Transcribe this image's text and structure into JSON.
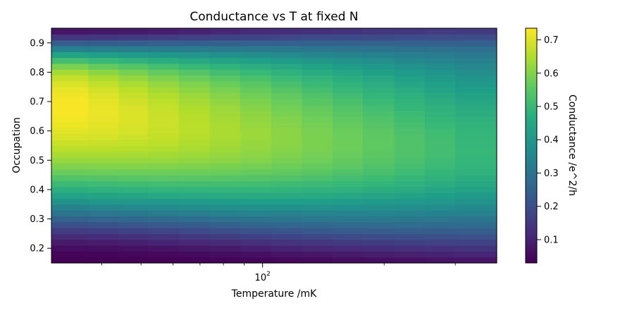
{
  "chart_data": {
    "type": "heatmap",
    "title": "Conductance vs T at fixed N",
    "xlabel": "Temperature /mK",
    "ylabel": "Occupation",
    "colorbar_label": "Conductance /e^2/h",
    "colormap": "viridis",
    "x_scale": "log",
    "x_range_mK": [
      30,
      380
    ],
    "x_major_tick": {
      "value": 100,
      "label": "10",
      "exponent": "2"
    },
    "x_minor_ticks": [
      40,
      50,
      60,
      70,
      80,
      90,
      200,
      300
    ],
    "ylim": [
      0.15,
      0.95
    ],
    "y_ticks": [
      0.2,
      0.3,
      0.4,
      0.5,
      0.6,
      0.7,
      0.8,
      0.9
    ],
    "y_tick_labels": [
      "0.2",
      "0.3",
      "0.4",
      "0.5",
      "0.6",
      "0.7",
      "0.8",
      "0.9"
    ],
    "clim": [
      0.03,
      0.735
    ],
    "colorbar_ticks": [
      0.1,
      0.2,
      0.3,
      0.4,
      0.5,
      0.6,
      0.7
    ],
    "colorbar_tick_labels": [
      "0.1",
      "0.2",
      "0.3",
      "0.4",
      "0.5",
      "0.6",
      "0.7"
    ],
    "temperature_columns_mK": [
      30,
      37,
      44,
      52,
      62,
      74,
      88,
      105,
      125,
      149,
      177,
      212,
      252,
      300,
      380
    ],
    "occupation_rows": [
      0.15,
      0.17,
      0.19,
      0.21,
      0.23,
      0.25,
      0.27,
      0.29,
      0.31,
      0.33,
      0.35,
      0.37,
      0.39,
      0.41,
      0.43,
      0.45,
      0.47,
      0.49,
      0.51,
      0.53,
      0.55,
      0.57,
      0.59,
      0.61,
      0.63,
      0.65,
      0.67,
      0.69,
      0.71,
      0.73,
      0.75,
      0.77,
      0.79,
      0.81,
      0.83,
      0.85,
      0.87,
      0.89,
      0.91,
      0.93,
      0.95
    ],
    "conductance_values": [
      [
        0.032,
        0.033,
        0.034,
        0.035,
        0.036,
        0.038,
        0.041,
        0.045,
        0.049,
        0.053,
        0.057,
        0.062,
        0.066,
        0.071
      ],
      [
        0.038,
        0.04,
        0.042,
        0.045,
        0.049,
        0.054,
        0.06,
        0.066,
        0.073,
        0.08,
        0.086,
        0.092,
        0.098,
        0.103
      ],
      [
        0.054,
        0.058,
        0.062,
        0.067,
        0.074,
        0.081,
        0.089,
        0.098,
        0.106,
        0.114,
        0.121,
        0.127,
        0.132,
        0.136
      ],
      [
        0.08,
        0.085,
        0.091,
        0.098,
        0.106,
        0.115,
        0.125,
        0.135,
        0.144,
        0.152,
        0.158,
        0.164,
        0.168,
        0.171
      ],
      [
        0.115,
        0.121,
        0.128,
        0.136,
        0.145,
        0.155,
        0.165,
        0.175,
        0.184,
        0.191,
        0.197,
        0.201,
        0.204,
        0.206
      ],
      [
        0.157,
        0.164,
        0.171,
        0.18,
        0.189,
        0.199,
        0.209,
        0.218,
        0.226,
        0.232,
        0.236,
        0.239,
        0.24,
        0.24
      ],
      [
        0.203,
        0.21,
        0.218,
        0.226,
        0.235,
        0.245,
        0.254,
        0.262,
        0.268,
        0.272,
        0.275,
        0.276,
        0.275,
        0.273
      ],
      [
        0.252,
        0.259,
        0.266,
        0.274,
        0.282,
        0.291,
        0.299,
        0.305,
        0.31,
        0.312,
        0.313,
        0.312,
        0.309,
        0.305
      ],
      [
        0.3,
        0.307,
        0.314,
        0.321,
        0.329,
        0.336,
        0.342,
        0.347,
        0.349,
        0.35,
        0.348,
        0.345,
        0.341,
        0.336
      ],
      [
        0.347,
        0.354,
        0.36,
        0.366,
        0.373,
        0.379,
        0.383,
        0.386,
        0.387,
        0.385,
        0.382,
        0.377,
        0.371,
        0.364
      ],
      [
        0.392,
        0.398,
        0.404,
        0.409,
        0.414,
        0.419,
        0.422,
        0.423,
        0.422,
        0.419,
        0.414,
        0.407,
        0.399,
        0.39
      ],
      [
        0.434,
        0.439,
        0.444,
        0.449,
        0.453,
        0.456,
        0.457,
        0.457,
        0.455,
        0.45,
        0.443,
        0.435,
        0.425,
        0.414
      ],
      [
        0.473,
        0.478,
        0.482,
        0.486,
        0.489,
        0.49,
        0.49,
        0.488,
        0.484,
        0.477,
        0.469,
        0.459,
        0.448,
        0.435
      ],
      [
        0.509,
        0.513,
        0.517,
        0.519,
        0.52,
        0.521,
        0.519,
        0.515,
        0.509,
        0.502,
        0.492,
        0.481,
        0.468,
        0.454
      ],
      [
        0.541,
        0.545,
        0.548,
        0.549,
        0.549,
        0.547,
        0.544,
        0.539,
        0.531,
        0.522,
        0.511,
        0.498,
        0.484,
        0.469
      ],
      [
        0.571,
        0.574,
        0.576,
        0.576,
        0.574,
        0.571,
        0.566,
        0.559,
        0.55,
        0.539,
        0.527,
        0.513,
        0.498,
        0.482
      ],
      [
        0.598,
        0.6,
        0.601,
        0.6,
        0.597,
        0.592,
        0.585,
        0.576,
        0.565,
        0.553,
        0.539,
        0.524,
        0.508,
        0.491
      ],
      [
        0.622,
        0.624,
        0.623,
        0.621,
        0.616,
        0.609,
        0.6,
        0.589,
        0.577,
        0.563,
        0.548,
        0.532,
        0.515,
        0.497
      ],
      [
        0.644,
        0.644,
        0.642,
        0.638,
        0.631,
        0.622,
        0.611,
        0.598,
        0.585,
        0.57,
        0.554,
        0.537,
        0.519,
        0.501
      ],
      [
        0.663,
        0.662,
        0.659,
        0.652,
        0.643,
        0.632,
        0.619,
        0.605,
        0.59,
        0.574,
        0.557,
        0.539,
        0.521,
        0.502
      ],
      [
        0.68,
        0.677,
        0.672,
        0.663,
        0.652,
        0.639,
        0.624,
        0.609,
        0.592,
        0.575,
        0.557,
        0.539,
        0.52,
        0.501
      ],
      [
        0.694,
        0.69,
        0.682,
        0.671,
        0.658,
        0.643,
        0.627,
        0.61,
        0.592,
        0.574,
        0.555,
        0.536,
        0.517,
        0.498
      ],
      [
        0.706,
        0.7,
        0.69,
        0.677,
        0.661,
        0.644,
        0.627,
        0.609,
        0.59,
        0.571,
        0.551,
        0.532,
        0.513,
        0.494
      ],
      [
        0.716,
        0.707,
        0.695,
        0.679,
        0.662,
        0.643,
        0.624,
        0.605,
        0.585,
        0.565,
        0.545,
        0.526,
        0.506,
        0.487
      ],
      [
        0.723,
        0.712,
        0.697,
        0.679,
        0.66,
        0.64,
        0.619,
        0.599,
        0.578,
        0.558,
        0.538,
        0.518,
        0.498,
        0.479
      ],
      [
        0.727,
        0.714,
        0.697,
        0.677,
        0.656,
        0.634,
        0.613,
        0.591,
        0.57,
        0.549,
        0.529,
        0.509,
        0.489,
        0.47
      ],
      [
        0.729,
        0.713,
        0.694,
        0.672,
        0.649,
        0.627,
        0.604,
        0.582,
        0.561,
        0.54,
        0.519,
        0.498,
        0.478,
        0.459
      ],
      [
        0.727,
        0.709,
        0.687,
        0.664,
        0.64,
        0.617,
        0.594,
        0.572,
        0.55,
        0.529,
        0.508,
        0.487,
        0.467,
        0.448
      ],
      [
        0.722,
        0.701,
        0.677,
        0.653,
        0.629,
        0.605,
        0.582,
        0.56,
        0.538,
        0.517,
        0.496,
        0.475,
        0.455,
        0.436
      ],
      [
        0.712,
        0.689,
        0.664,
        0.639,
        0.614,
        0.59,
        0.567,
        0.545,
        0.524,
        0.503,
        0.482,
        0.462,
        0.442,
        0.423
      ],
      [
        0.697,
        0.672,
        0.646,
        0.62,
        0.596,
        0.573,
        0.55,
        0.528,
        0.507,
        0.487,
        0.467,
        0.447,
        0.428,
        0.409
      ],
      [
        0.674,
        0.648,
        0.622,
        0.597,
        0.573,
        0.55,
        0.529,
        0.508,
        0.488,
        0.468,
        0.449,
        0.43,
        0.412,
        0.394
      ],
      [
        0.64,
        0.614,
        0.589,
        0.565,
        0.543,
        0.522,
        0.502,
        0.483,
        0.465,
        0.447,
        0.429,
        0.411,
        0.394,
        0.377
      ],
      [
        0.59,
        0.566,
        0.544,
        0.523,
        0.504,
        0.486,
        0.469,
        0.452,
        0.436,
        0.421,
        0.405,
        0.39,
        0.374,
        0.359
      ],
      [
        0.522,
        0.503,
        0.485,
        0.469,
        0.454,
        0.44,
        0.427,
        0.414,
        0.401,
        0.389,
        0.376,
        0.363,
        0.351,
        0.339
      ],
      [
        0.437,
        0.424,
        0.412,
        0.402,
        0.393,
        0.384,
        0.375,
        0.367,
        0.358,
        0.35,
        0.341,
        0.332,
        0.323,
        0.314
      ],
      [
        0.34,
        0.334,
        0.329,
        0.325,
        0.321,
        0.317,
        0.314,
        0.31,
        0.306,
        0.302,
        0.298,
        0.293,
        0.288,
        0.283
      ],
      [
        0.237,
        0.238,
        0.24,
        0.242,
        0.244,
        0.246,
        0.247,
        0.248,
        0.248,
        0.248,
        0.247,
        0.246,
        0.244,
        0.242
      ],
      [
        0.141,
        0.146,
        0.152,
        0.158,
        0.165,
        0.171,
        0.177,
        0.182,
        0.186,
        0.19,
        0.193,
        0.195,
        0.196,
        0.196
      ],
      [
        0.071,
        0.076,
        0.082,
        0.089,
        0.097,
        0.105,
        0.113,
        0.121,
        0.128,
        0.135,
        0.141,
        0.146,
        0.15,
        0.153
      ]
    ]
  }
}
